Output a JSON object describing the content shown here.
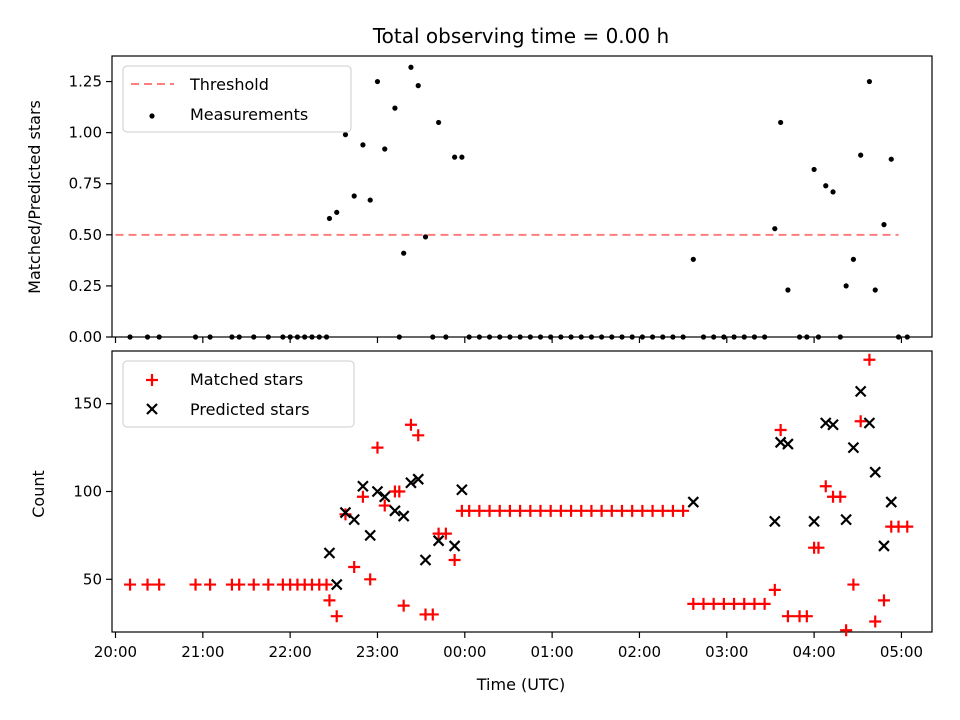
{
  "chart_data": [
    {
      "type": "scatter",
      "title": "Total observing time = 0.00 h",
      "ylabel": "Matched/Predicted stars",
      "xlabel": "",
      "ylim": [
        0,
        1.375
      ],
      "xlim_hours": [
        -4.04,
        5.35
      ],
      "yticks": [
        0.0,
        0.25,
        0.5,
        0.75,
        1.0,
        1.25
      ],
      "ytick_labels": [
        "0.00",
        "0.25",
        "0.50",
        "0.75",
        "1.00",
        "1.25"
      ],
      "grid": false,
      "legend_position": "top-left",
      "legend": [
        {
          "label": "Threshold",
          "style": "dashed-line",
          "color": "#ff7f7f"
        },
        {
          "label": "Measurements",
          "style": "dot",
          "color": "#000000"
        }
      ],
      "threshold": {
        "value": 0.5,
        "x_start": "20:00",
        "x_end": "04:58"
      },
      "series": [
        {
          "name": "Measurements",
          "color": "#000000",
          "points": [
            [
              "20:10",
              0
            ],
            [
              "20:22",
              0
            ],
            [
              "20:30",
              0
            ],
            [
              "20:55",
              0
            ],
            [
              "21:05",
              0
            ],
            [
              "21:20",
              0
            ],
            [
              "21:25",
              0
            ],
            [
              "21:35",
              0
            ],
            [
              "21:45",
              0
            ],
            [
              "21:55",
              0
            ],
            [
              "22:00",
              0
            ],
            [
              "22:05",
              0
            ],
            [
              "22:10",
              0
            ],
            [
              "22:15",
              0
            ],
            [
              "22:20",
              0
            ],
            [
              "22:25",
              0
            ],
            [
              "22:27",
              0.58
            ],
            [
              "22:32",
              0.61
            ],
            [
              "22:38",
              0.99
            ],
            [
              "22:44",
              0.69
            ],
            [
              "22:50",
              0.94
            ],
            [
              "22:55",
              0.67
            ],
            [
              "23:00",
              1.25
            ],
            [
              "23:05",
              0.92
            ],
            [
              "23:12",
              1.12
            ],
            [
              "23:15",
              0
            ],
            [
              "23:18",
              0.41
            ],
            [
              "23:23",
              1.32
            ],
            [
              "23:28",
              1.23
            ],
            [
              "23:33",
              0.49
            ],
            [
              "23:38",
              0
            ],
            [
              "23:42",
              1.05
            ],
            [
              "23:47",
              0
            ],
            [
              "23:53",
              0.88
            ],
            [
              "23:58",
              0.88
            ],
            [
              "00:03",
              0
            ],
            [
              "00:10",
              0
            ],
            [
              "00:17",
              0
            ],
            [
              "00:24",
              0
            ],
            [
              "00:31",
              0
            ],
            [
              "00:38",
              0
            ],
            [
              "00:45",
              0
            ],
            [
              "00:52",
              0
            ],
            [
              "00:59",
              0
            ],
            [
              "01:06",
              0
            ],
            [
              "01:13",
              0
            ],
            [
              "01:20",
              0
            ],
            [
              "01:27",
              0
            ],
            [
              "01:34",
              0
            ],
            [
              "01:41",
              0
            ],
            [
              "01:48",
              0
            ],
            [
              "01:55",
              0
            ],
            [
              "02:02",
              0
            ],
            [
              "02:09",
              0
            ],
            [
              "02:16",
              0
            ],
            [
              "02:23",
              0
            ],
            [
              "02:30",
              0
            ],
            [
              "02:37",
              0.38
            ],
            [
              "02:44",
              0
            ],
            [
              "02:51",
              0
            ],
            [
              "02:58",
              0
            ],
            [
              "03:05",
              0
            ],
            [
              "03:12",
              0
            ],
            [
              "03:19",
              0
            ],
            [
              "03:26",
              0
            ],
            [
              "03:33",
              0.53
            ],
            [
              "03:37",
              1.05
            ],
            [
              "03:42",
              0.23
            ],
            [
              "03:50",
              0
            ],
            [
              "03:55",
              0
            ],
            [
              "04:00",
              0.82
            ],
            [
              "04:03",
              0
            ],
            [
              "04:08",
              0.74
            ],
            [
              "04:13",
              0.71
            ],
            [
              "04:18",
              0
            ],
            [
              "04:22",
              0.25
            ],
            [
              "04:27",
              0.38
            ],
            [
              "04:32",
              0.89
            ],
            [
              "04:38",
              1.25
            ],
            [
              "04:42",
              0.23
            ],
            [
              "04:48",
              0.55
            ],
            [
              "04:53",
              0.87
            ],
            [
              "04:58",
              0
            ],
            [
              "05:04",
              0
            ]
          ]
        }
      ]
    },
    {
      "type": "scatter",
      "title": "",
      "ylabel": "Count",
      "xlabel": "Time (UTC)",
      "ylim": [
        20,
        180
      ],
      "xlim_hours": [
        -4.04,
        5.35
      ],
      "yticks": [
        50,
        100,
        150
      ],
      "ytick_labels": [
        "50",
        "100",
        "150"
      ],
      "xtick_labels": [
        "20:00",
        "21:00",
        "22:00",
        "23:00",
        "00:00",
        "01:00",
        "02:00",
        "03:00",
        "04:00",
        "05:00"
      ],
      "grid": false,
      "legend_position": "top-left",
      "legend": [
        {
          "label": "Matched stars",
          "style": "plus",
          "color": "#ff0000"
        },
        {
          "label": "Predicted stars",
          "style": "cross",
          "color": "#000000"
        }
      ],
      "series": [
        {
          "name": "Matched stars",
          "color": "#ff0000",
          "points": [
            [
              "20:10",
              47
            ],
            [
              "20:22",
              47
            ],
            [
              "20:30",
              47
            ],
            [
              "20:55",
              47
            ],
            [
              "21:05",
              47
            ],
            [
              "21:20",
              47
            ],
            [
              "21:25",
              47
            ],
            [
              "21:35",
              47
            ],
            [
              "21:45",
              47
            ],
            [
              "21:55",
              47
            ],
            [
              "22:00",
              47
            ],
            [
              "22:05",
              47
            ],
            [
              "22:10",
              47
            ],
            [
              "22:15",
              47
            ],
            [
              "22:20",
              47
            ],
            [
              "22:25",
              47
            ],
            [
              "22:27",
              38
            ],
            [
              "22:32",
              29
            ],
            [
              "22:38",
              87
            ],
            [
              "22:44",
              57
            ],
            [
              "22:50",
              97
            ],
            [
              "22:55",
              50
            ],
            [
              "23:00",
              125
            ],
            [
              "23:05",
              92
            ],
            [
              "23:12",
              100
            ],
            [
              "23:15",
              100
            ],
            [
              "23:18",
              35
            ],
            [
              "23:23",
              138
            ],
            [
              "23:28",
              132
            ],
            [
              "23:33",
              30
            ],
            [
              "23:38",
              30
            ],
            [
              "23:42",
              76
            ],
            [
              "23:47",
              76
            ],
            [
              "23:53",
              61
            ],
            [
              "23:58",
              89
            ],
            [
              "00:03",
              89
            ],
            [
              "00:10",
              89
            ],
            [
              "00:17",
              89
            ],
            [
              "00:24",
              89
            ],
            [
              "00:31",
              89
            ],
            [
              "00:38",
              89
            ],
            [
              "00:45",
              89
            ],
            [
              "00:52",
              89
            ],
            [
              "00:59",
              89
            ],
            [
              "01:06",
              89
            ],
            [
              "01:13",
              89
            ],
            [
              "01:20",
              89
            ],
            [
              "01:27",
              89
            ],
            [
              "01:34",
              89
            ],
            [
              "01:41",
              89
            ],
            [
              "01:48",
              89
            ],
            [
              "01:55",
              89
            ],
            [
              "02:02",
              89
            ],
            [
              "02:09",
              89
            ],
            [
              "02:16",
              89
            ],
            [
              "02:23",
              89
            ],
            [
              "02:30",
              89
            ],
            [
              "02:37",
              36
            ],
            [
              "02:44",
              36
            ],
            [
              "02:51",
              36
            ],
            [
              "02:58",
              36
            ],
            [
              "03:05",
              36
            ],
            [
              "03:12",
              36
            ],
            [
              "03:19",
              36
            ],
            [
              "03:26",
              36
            ],
            [
              "03:33",
              44
            ],
            [
              "03:37",
              135
            ],
            [
              "03:42",
              29
            ],
            [
              "03:50",
              29
            ],
            [
              "03:55",
              29
            ],
            [
              "04:00",
              68
            ],
            [
              "04:03",
              68
            ],
            [
              "04:08",
              103
            ],
            [
              "04:13",
              97
            ],
            [
              "04:18",
              97
            ],
            [
              "04:22",
              21
            ],
            [
              "04:27",
              47
            ],
            [
              "04:32",
              140
            ],
            [
              "04:38",
              175
            ],
            [
              "04:42",
              26
            ],
            [
              "04:48",
              38
            ],
            [
              "04:53",
              80
            ],
            [
              "04:58",
              80
            ],
            [
              "05:04",
              80
            ]
          ]
        },
        {
          "name": "Predicted stars",
          "color": "#000000",
          "points": [
            [
              "22:27",
              65
            ],
            [
              "22:32",
              47
            ],
            [
              "22:38",
              88
            ],
            [
              "22:44",
              84
            ],
            [
              "22:50",
              103
            ],
            [
              "22:55",
              75
            ],
            [
              "23:00",
              100
            ],
            [
              "23:05",
              97
            ],
            [
              "23:12",
              89
            ],
            [
              "23:18",
              86
            ],
            [
              "23:23",
              105
            ],
            [
              "23:28",
              107
            ],
            [
              "23:33",
              61
            ],
            [
              "23:42",
              72
            ],
            [
              "23:53",
              69
            ],
            [
              "23:58",
              101
            ],
            [
              "02:37",
              94
            ],
            [
              "03:33",
              83
            ],
            [
              "03:37",
              128
            ],
            [
              "03:42",
              127
            ],
            [
              "04:00",
              83
            ],
            [
              "04:08",
              139
            ],
            [
              "04:13",
              138
            ],
            [
              "04:22",
              84
            ],
            [
              "04:27",
              125
            ],
            [
              "04:32",
              157
            ],
            [
              "04:38",
              139
            ],
            [
              "04:42",
              111
            ],
            [
              "04:48",
              69
            ],
            [
              "04:53",
              94
            ]
          ]
        }
      ]
    }
  ]
}
